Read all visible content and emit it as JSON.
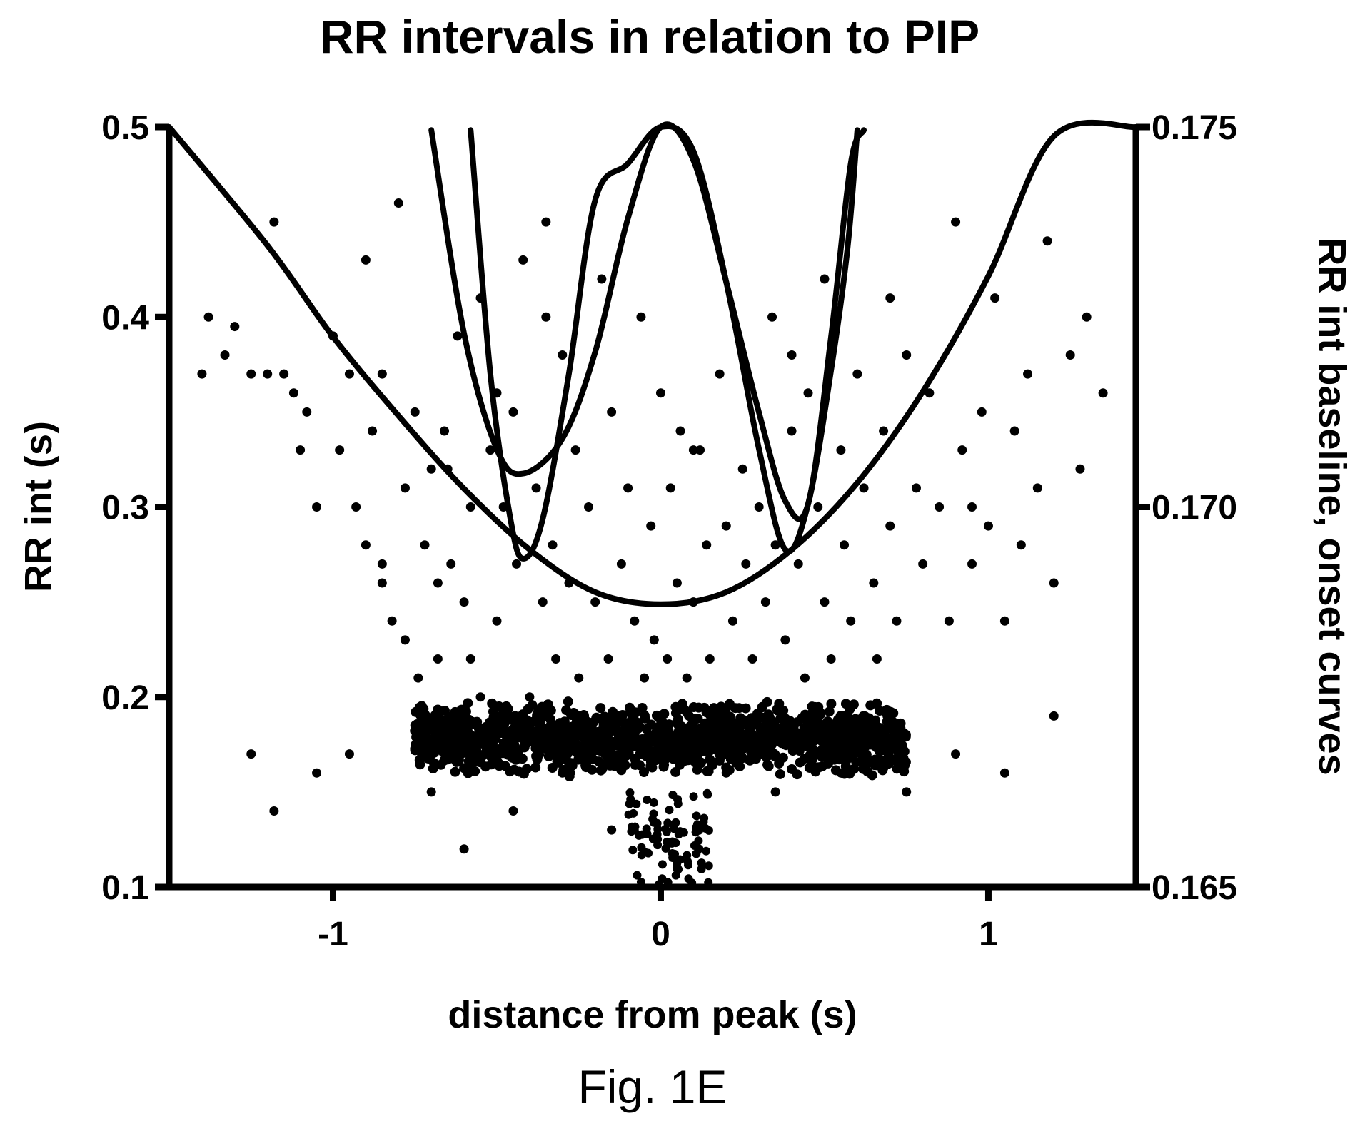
{
  "chart_data": {
    "type": "scatter",
    "title": "RR intervals in relation to PIP",
    "xlabel": "distance from peak (s)",
    "ylabel": "RR int (s)",
    "y2label": "RR int baseline, onset curves",
    "caption": "Fig. 1E",
    "xlim": [
      -1.5,
      1.45
    ],
    "ylim": [
      0.1,
      0.5
    ],
    "y2lim": [
      0.165,
      0.175
    ],
    "x_ticks": [
      {
        "value": -1,
        "label": "-1"
      },
      {
        "value": 0,
        "label": "0"
      },
      {
        "value": 1,
        "label": "1"
      }
    ],
    "y_ticks": [
      {
        "value": 0.1,
        "label": "0.1"
      },
      {
        "value": 0.2,
        "label": "0.2"
      },
      {
        "value": 0.3,
        "label": "0.3"
      },
      {
        "value": 0.4,
        "label": "0.4"
      },
      {
        "value": 0.5,
        "label": "0.5"
      }
    ],
    "y2_ticks": [
      {
        "value": 0.165,
        "label": "0.165"
      },
      {
        "value": 0.17,
        "label": "0.170"
      },
      {
        "value": 0.175,
        "label": "0.175"
      }
    ],
    "grid": false,
    "series": [
      {
        "type": "line",
        "axis": "y2",
        "x": [
          -1.5,
          -1.2,
          -1.0,
          -0.8,
          -0.6,
          -0.4,
          -0.2,
          0.0,
          0.2,
          0.4,
          0.6,
          0.8,
          1.0,
          1.2,
          1.45
        ],
        "values": [
          0.175,
          0.17344,
          0.17224,
          0.1712,
          0.17024,
          0.16944,
          0.16888,
          0.16872,
          0.16888,
          0.16944,
          0.17032,
          0.17152,
          0.17304,
          0.17488,
          0.175
        ]
      },
      {
        "type": "line",
        "axis": "y2",
        "x": [
          -0.7,
          -0.6,
          -0.5,
          -0.42,
          -0.3,
          -0.2,
          -0.1,
          0.0,
          0.1,
          0.2,
          0.3,
          0.38,
          0.45,
          0.52,
          0.58,
          0.62
        ],
        "values": [
          0.17496,
          0.17228,
          0.17076,
          0.17044,
          0.1709,
          0.17204,
          0.1738,
          0.175,
          0.17456,
          0.17296,
          0.17124,
          0.17008,
          0.17004,
          0.17224,
          0.17452,
          0.17496
        ]
      },
      {
        "type": "line",
        "axis": "y2",
        "x": [
          -0.58,
          -0.52,
          -0.46,
          -0.42,
          -0.36,
          -0.28,
          -0.2,
          -0.1,
          0.0,
          0.1,
          0.2,
          0.3,
          0.38,
          0.45,
          0.52,
          0.57,
          0.6
        ],
        "values": [
          0.17496,
          0.17176,
          0.16988,
          0.16932,
          0.16984,
          0.17176,
          0.17404,
          0.17452,
          0.175,
          0.17468,
          0.17296,
          0.17076,
          0.16944,
          0.17004,
          0.1718,
          0.1734,
          0.17496
        ]
      },
      {
        "type": "scatter",
        "axis": "y",
        "x": [
          -1.4,
          -1.38,
          -1.33,
          -1.3,
          -1.25,
          -1.18,
          -1.15,
          -1.2,
          -1.12,
          -1.1,
          -1.08,
          -1.05,
          -1.0,
          -0.98,
          -0.95,
          -0.93,
          -0.9,
          -0.9,
          -0.88,
          -0.85,
          -0.85,
          -0.82,
          -0.8,
          -0.78,
          -0.78,
          -0.75,
          -0.74,
          -0.72,
          -0.7,
          -0.68,
          -0.68,
          -0.66,
          -0.64,
          -0.62,
          -0.6,
          -0.58,
          -0.58,
          -0.55,
          -0.55,
          -0.52,
          -0.5,
          -0.5,
          -0.48,
          -0.46,
          -0.45,
          -0.44,
          -0.42,
          -0.4,
          -0.38,
          -0.36,
          -0.35,
          -0.33,
          -0.32,
          -0.3,
          -0.28,
          -0.26,
          -0.25,
          -0.22,
          -0.2,
          -0.18,
          -0.16,
          -0.15,
          -0.12,
          -0.1,
          -0.08,
          -0.06,
          -0.05,
          -0.03,
          -0.02,
          0.0,
          0.02,
          0.03,
          0.05,
          0.06,
          0.08,
          0.1,
          0.12,
          0.14,
          0.15,
          0.18,
          0.2,
          0.22,
          0.25,
          0.26,
          0.28,
          0.3,
          0.32,
          0.34,
          0.35,
          0.38,
          0.4,
          0.42,
          0.44,
          0.45,
          0.48,
          0.5,
          0.5,
          0.52,
          0.55,
          0.56,
          0.58,
          0.6,
          0.62,
          0.65,
          0.66,
          0.68,
          0.7,
          0.72,
          0.75,
          0.78,
          0.8,
          0.82,
          0.85,
          0.88,
          0.9,
          0.92,
          0.95,
          0.98,
          1.0,
          1.02,
          1.05,
          1.08,
          1.1,
          1.12,
          1.15,
          1.18,
          1.2,
          1.25,
          1.28,
          1.3,
          1.35,
          -1.25,
          -1.18,
          -1.05,
          -0.95,
          -0.7,
          -0.6,
          -0.45,
          -0.3,
          -0.15,
          0.05,
          0.2,
          0.35,
          0.55,
          0.75,
          0.9,
          1.05,
          1.2,
          -0.85,
          -0.65,
          -0.35,
          0.1,
          0.4,
          0.7,
          0.95
        ],
        "values": [
          0.37,
          0.4,
          0.38,
          0.395,
          0.37,
          0.45,
          0.37,
          0.37,
          0.36,
          0.33,
          0.35,
          0.3,
          0.39,
          0.33,
          0.37,
          0.3,
          0.43,
          0.28,
          0.34,
          0.26,
          0.37,
          0.24,
          0.46,
          0.31,
          0.23,
          0.35,
          0.21,
          0.28,
          0.32,
          0.26,
          0.22,
          0.34,
          0.27,
          0.39,
          0.25,
          0.3,
          0.22,
          0.41,
          0.2,
          0.33,
          0.36,
          0.24,
          0.3,
          0.19,
          0.35,
          0.27,
          0.43,
          0.2,
          0.31,
          0.25,
          0.45,
          0.28,
          0.22,
          0.38,
          0.26,
          0.33,
          0.21,
          0.3,
          0.25,
          0.42,
          0.22,
          0.35,
          0.27,
          0.31,
          0.24,
          0.4,
          0.21,
          0.29,
          0.23,
          0.36,
          0.22,
          0.31,
          0.26,
          0.34,
          0.21,
          0.25,
          0.33,
          0.28,
          0.22,
          0.37,
          0.29,
          0.24,
          0.32,
          0.27,
          0.22,
          0.3,
          0.25,
          0.4,
          0.28,
          0.23,
          0.34,
          0.27,
          0.21,
          0.36,
          0.3,
          0.25,
          0.42,
          0.22,
          0.33,
          0.28,
          0.24,
          0.37,
          0.31,
          0.26,
          0.22,
          0.34,
          0.29,
          0.24,
          0.38,
          0.31,
          0.27,
          0.36,
          0.3,
          0.24,
          0.45,
          0.33,
          0.27,
          0.35,
          0.29,
          0.41,
          0.24,
          0.34,
          0.28,
          0.37,
          0.31,
          0.44,
          0.26,
          0.38,
          0.32,
          0.4,
          0.36,
          0.17,
          0.14,
          0.16,
          0.17,
          0.15,
          0.12,
          0.14,
          0.16,
          0.13,
          0.11,
          0.16,
          0.15,
          0.16,
          0.15,
          0.17,
          0.16,
          0.19,
          0.27,
          0.32,
          0.4,
          0.33,
          0.38,
          0.41,
          0.3
        ]
      }
    ],
    "dense_band": {
      "x_range": [
        -0.75,
        0.75
      ],
      "y_range": [
        0.16,
        0.2
      ],
      "y_center": 0.178
    },
    "lower_cluster": {
      "x_range": [
        -0.1,
        0.15
      ],
      "y_range": [
        0.1,
        0.15
      ]
    }
  }
}
